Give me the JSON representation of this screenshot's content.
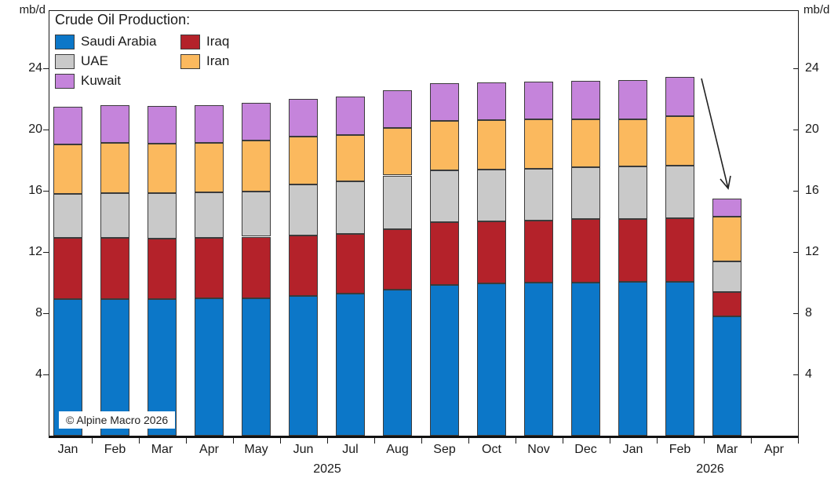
{
  "figure": {
    "unit_label": "mb/d",
    "copyright": "© Alpine Macro 2026"
  },
  "chart_data": {
    "type": "bar",
    "stacked": true,
    "title": "Crude Oil Production:",
    "ylabel": "mb/d",
    "xlabel": "",
    "x_categories": [
      "Jan",
      "Feb",
      "Mar",
      "Apr",
      "May",
      "Jun",
      "Jul",
      "Aug",
      "Sep",
      "Oct",
      "Nov",
      "Dec",
      "Jan",
      "Feb",
      "Mar",
      "Apr"
    ],
    "x_year_labels": [
      "2025",
      "2026"
    ],
    "yticks": [
      4,
      8,
      12,
      16,
      20,
      24
    ],
    "ylim": [
      0,
      27.8
    ],
    "grid": false,
    "legend_position": "top-left",
    "series": [
      {
        "name": "Saudi Arabia",
        "color": "#0C77C8",
        "values": [
          8.9,
          8.9,
          8.9,
          8.95,
          9.0,
          9.15,
          9.3,
          9.55,
          9.85,
          9.95,
          10.0,
          10.0,
          10.05,
          10.05,
          7.8,
          null
        ]
      },
      {
        "name": "Iraq",
        "color": "#B4222A",
        "values": [
          4.0,
          4.0,
          3.95,
          3.95,
          4.0,
          3.95,
          3.9,
          3.95,
          4.1,
          4.05,
          4.05,
          4.15,
          4.1,
          4.15,
          1.6,
          null
        ]
      },
      {
        "name": "UAE",
        "color": "#C9C9C9",
        "values": [
          2.9,
          2.95,
          3.0,
          3.0,
          2.95,
          3.3,
          3.4,
          3.5,
          3.4,
          3.4,
          3.4,
          3.4,
          3.45,
          3.45,
          2.0,
          null
        ]
      },
      {
        "name": "Iran",
        "color": "#FBB95E",
        "values": [
          3.25,
          3.3,
          3.25,
          3.25,
          3.35,
          3.15,
          3.05,
          3.1,
          3.2,
          3.2,
          3.2,
          3.1,
          3.05,
          3.2,
          2.9,
          null
        ]
      },
      {
        "name": "Kuwait",
        "color": "#C584DB",
        "values": [
          2.45,
          2.45,
          2.45,
          2.45,
          2.45,
          2.45,
          2.5,
          2.45,
          2.5,
          2.5,
          2.5,
          2.55,
          2.6,
          2.6,
          1.2,
          null
        ]
      }
    ],
    "totals": [
      21.5,
      21.6,
      21.55,
      21.6,
      21.75,
      22.0,
      22.15,
      22.55,
      23.05,
      23.1,
      23.15,
      23.2,
      23.25,
      23.45,
      15.5,
      null
    ],
    "annotation_arrow": {
      "from": "Feb 2026 bar top",
      "to": "Mar 2026 bar top",
      "description": "arrow marking sharp production drop"
    }
  }
}
